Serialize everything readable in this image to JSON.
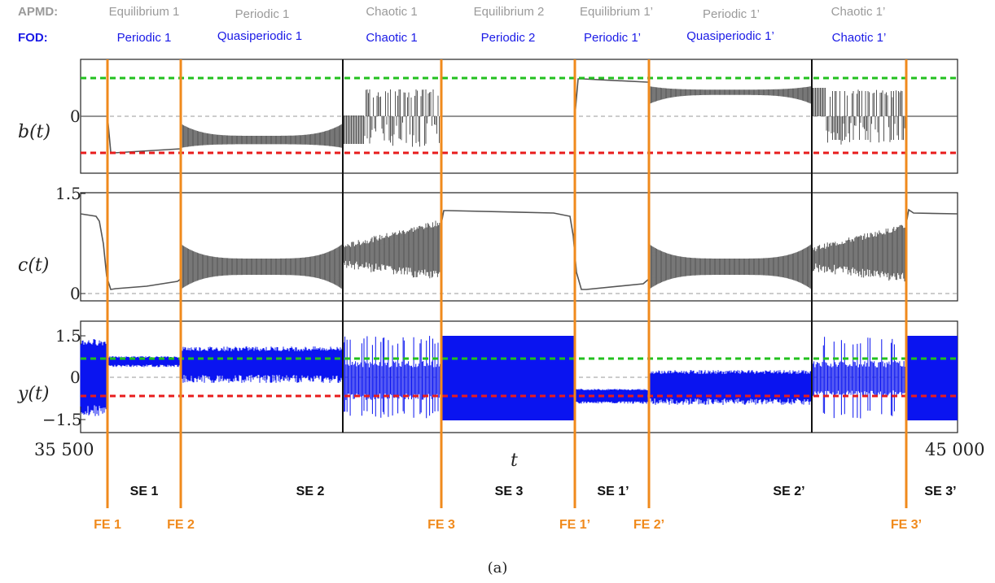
{
  "header": {
    "apmd_label": "APMD:",
    "fod_label": "FOD:",
    "apmd_states": [
      "Equilibrium 1",
      "Periodic 1",
      "Chaotic 1",
      "Equilibrium 2",
      "Equilibrium 1’",
      "Periodic 1’",
      "Chaotic 1’"
    ],
    "fod_states": [
      "Periodic 1",
      "Quasiperiodic 1",
      "Chaotic 1",
      "Periodic 2",
      "Periodic 1’",
      "Quasiperiodic 1’",
      "Chaotic 1’"
    ]
  },
  "colors": {
    "apmd": "#9a9a9a",
    "fod": "#1a1ae6",
    "signal": "#555555",
    "y_signal": "#0a14f0",
    "green_threshold": "#22c01e",
    "red_threshold": "#e81c1c",
    "fe_line": "#f08a1c"
  },
  "chart_data": {
    "type": "line",
    "x_axis": {
      "label": "t",
      "range": [
        35500,
        45000
      ],
      "tick_labels": [
        "35 500",
        "45 000"
      ]
    },
    "panels": [
      {
        "ylabel": "b(t)",
        "yticks": [
          "0"
        ]
      },
      {
        "ylabel": "c(t)",
        "yticks": [
          "1.5",
          "0"
        ]
      },
      {
        "ylabel": "y(t)",
        "yticks": [
          "1.5",
          "0",
          "−1.5"
        ]
      }
    ],
    "switch_events": [
      "SE 1",
      "SE 2",
      "SE 3",
      "SE 1’",
      "SE 2’",
      "SE 3’"
    ],
    "fod_events": [
      "FE 1",
      "FE 2",
      "FE 3",
      "FE 1’",
      "FE 2’",
      "FE 3’"
    ],
    "caption": "(a)"
  }
}
